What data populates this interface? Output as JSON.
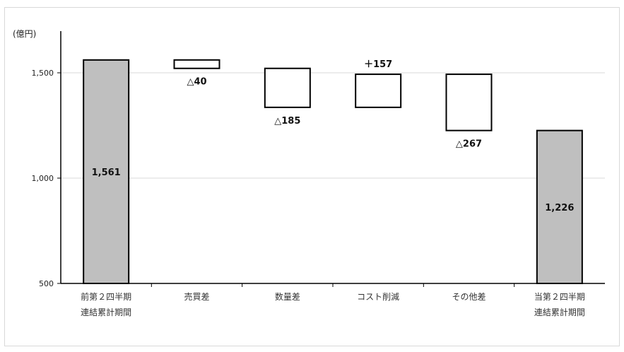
{
  "chart_data": {
    "type": "bar",
    "subtype": "waterfall",
    "unit_label": "(億円)",
    "ylim": [
      500,
      1600
    ],
    "yticks": [
      500,
      1000,
      1500
    ],
    "ytick_labels": [
      "500",
      "1,000",
      "1,500"
    ],
    "grid": true,
    "categories": [
      [
        "前第２四半期",
        "連結累計期間"
      ],
      [
        "売買差"
      ],
      [
        "数量差"
      ],
      [
        "コスト削減"
      ],
      [
        "その他差"
      ],
      [
        "当第２四半期",
        "連結累計期間"
      ]
    ],
    "bars": [
      {
        "kind": "total",
        "start": 0,
        "end": 1561,
        "label": "1,561",
        "label_pos": "inside"
      },
      {
        "kind": "delta",
        "start": 1561,
        "end": 1521,
        "label": "△40",
        "label_pos": "below"
      },
      {
        "kind": "delta",
        "start": 1521,
        "end": 1336,
        "label": "△185",
        "label_pos": "below"
      },
      {
        "kind": "delta",
        "start": 1336,
        "end": 1493,
        "label": "＋157",
        "label_pos": "above"
      },
      {
        "kind": "delta",
        "start": 1493,
        "end": 1226,
        "label": "△267",
        "label_pos": "below"
      },
      {
        "kind": "total",
        "start": 0,
        "end": 1226,
        "label": "1,226",
        "label_pos": "inside"
      }
    ],
    "colors": {
      "total_fill": "#bfbfbf",
      "delta_fill": "#ffffff",
      "bar_stroke": "#000000",
      "gridline": "#d9d9d9",
      "axis": "#000000"
    }
  }
}
